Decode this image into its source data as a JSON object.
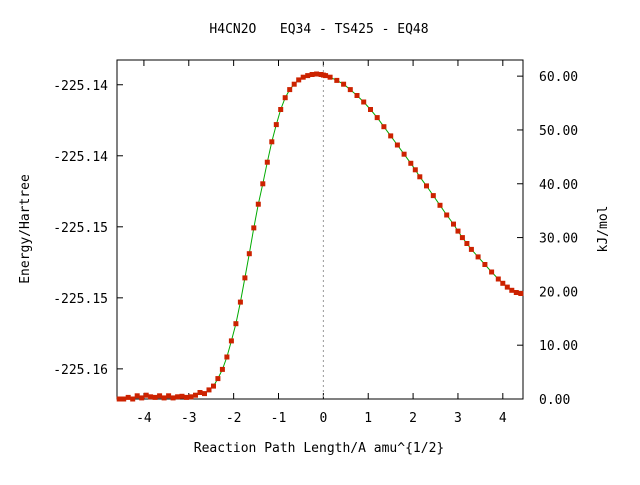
{
  "chart_data": {
    "type": "line",
    "title": "H4CN2O   EQ34 - TS425 - EQ48",
    "xlabel": "Reaction Path Length/A amu^{1/2}",
    "ylabel": "Energy/Hartree",
    "y2label": "kJ/mol",
    "xlim": [
      -4.6,
      4.45
    ],
    "x_ticks": [
      -4,
      -3,
      -2,
      -1,
      0,
      1,
      2,
      3,
      4
    ],
    "x_tick_labels": [
      "-4",
      "-3",
      "-2",
      "-1",
      "0",
      "1",
      "2",
      "3",
      "4"
    ],
    "y2lim": [
      0,
      63
    ],
    "y_left_tick_kj": [
      58.4,
      45.2,
      32.0,
      18.8,
      5.6
    ],
    "y_left_tick_labels": [
      "-225.14",
      "-225.14",
      "-225.15",
      "-225.15",
      "-225.16"
    ],
    "y_right_ticks": [
      0,
      10,
      20,
      30,
      40,
      50,
      60
    ],
    "y_right_tick_labels": [
      "0.00",
      "10.00",
      "20.00",
      "30.00",
      "40.00",
      "50.00",
      "60.00"
    ],
    "ts_marker_x": 0,
    "grid": false,
    "colors": {
      "line": "#00aa00",
      "marker": "#cc2200",
      "ts_line": "#999999",
      "axis": "#000000"
    },
    "series": [
      {
        "x": [
          -4.55,
          -4.45,
          -4.35,
          -4.25,
          -4.15,
          -4.05,
          -3.95,
          -3.85,
          -3.75,
          -3.65,
          -3.55,
          -3.45,
          -3.35,
          -3.25,
          -3.15,
          -3.05,
          -2.95,
          -2.85,
          -2.75,
          -2.65,
          -2.55,
          -2.45,
          -2.35,
          -2.25,
          -2.15,
          -2.05,
          -1.95,
          -1.85,
          -1.75,
          -1.65,
          -1.55,
          -1.45,
          -1.35,
          -1.25,
          -1.15,
          -1.05,
          -0.95,
          -0.85,
          -0.75,
          -0.65,
          -0.55,
          -0.45,
          -0.35,
          -0.25,
          -0.15,
          -0.05,
          0.0,
          0.05,
          0.15,
          0.3,
          0.45,
          0.6,
          0.75,
          0.9,
          1.05,
          1.2,
          1.35,
          1.5,
          1.65,
          1.8,
          1.95,
          2.05,
          2.15,
          2.3,
          2.45,
          2.6,
          2.75,
          2.9,
          3.0,
          3.1,
          3.2,
          3.3,
          3.45,
          3.6,
          3.75,
          3.9,
          4.0,
          4.1,
          4.2,
          4.3,
          4.4
        ],
        "y": [
          0.0,
          0.0,
          0.3,
          0.0,
          0.6,
          0.2,
          0.7,
          0.4,
          0.3,
          0.6,
          0.2,
          0.6,
          0.2,
          0.4,
          0.5,
          0.3,
          0.4,
          0.7,
          1.2,
          1.0,
          1.7,
          2.4,
          3.8,
          5.5,
          7.8,
          10.8,
          14.0,
          18.0,
          22.5,
          27.0,
          31.8,
          36.2,
          40.0,
          44.0,
          47.8,
          51.0,
          53.8,
          56.0,
          57.5,
          58.5,
          59.3,
          59.8,
          60.1,
          60.3,
          60.4,
          60.3,
          60.2,
          60.1,
          59.8,
          59.2,
          58.5,
          57.5,
          56.4,
          55.2,
          53.8,
          52.3,
          50.6,
          48.9,
          47.2,
          45.5,
          43.8,
          42.6,
          41.3,
          39.6,
          37.8,
          36.0,
          34.2,
          32.5,
          31.2,
          30.0,
          28.9,
          27.8,
          26.4,
          25.0,
          23.6,
          22.3,
          21.5,
          20.8,
          20.2,
          19.8,
          19.6
        ]
      }
    ]
  }
}
